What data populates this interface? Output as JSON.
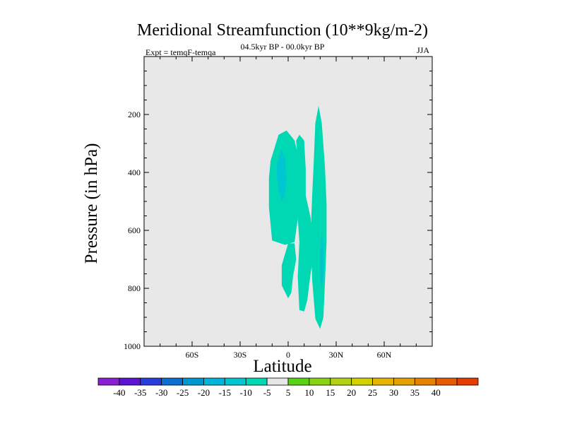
{
  "chart_data": {
    "type": "contour",
    "title": "Meridional Streamfunction (10**9kg/m-2)",
    "subtitle": "04.5kyr BP - 00.0kyr BP",
    "left_annotation": "Expt = temqF-temqa",
    "right_annotation": "JJA",
    "xlabel": "Latitude",
    "ylabel": "Pressure (in hPa)",
    "xlim": [
      -90,
      90
    ],
    "ylim": [
      0,
      1000
    ],
    "y_inverted": true,
    "xticks": [
      {
        "value": -60,
        "label": "60S"
      },
      {
        "value": -30,
        "label": "30S"
      },
      {
        "value": 0,
        "label": "0"
      },
      {
        "value": 30,
        "label": "30N"
      },
      {
        "value": 60,
        "label": "60N"
      }
    ],
    "yticks": [
      {
        "value": 200,
        "label": "200"
      },
      {
        "value": 400,
        "label": "400"
      },
      {
        "value": 600,
        "label": "600"
      },
      {
        "value": 800,
        "label": "800"
      },
      {
        "value": 1000,
        "label": "1000"
      }
    ],
    "background_color": "#e8e8e8",
    "filled_regions": [
      {
        "name": "neg-5-west-cell",
        "level": -5,
        "color": "#00d8b4",
        "points": [
          [
            -11,
            360
          ],
          [
            -6,
            270
          ],
          [
            -1,
            255
          ],
          [
            4,
            290
          ],
          [
            7,
            360
          ],
          [
            8,
            450
          ],
          [
            6,
            560
          ],
          [
            4,
            640
          ],
          [
            -2,
            650
          ],
          [
            -10,
            635
          ],
          [
            -12,
            520
          ],
          [
            -12,
            420
          ]
        ]
      },
      {
        "name": "neg-5-lower-west-lobe",
        "level": -5,
        "color": "#00d8b4",
        "points": [
          [
            -4,
            720
          ],
          [
            0,
            645
          ],
          [
            4,
            645
          ],
          [
            5,
            700
          ],
          [
            3,
            760
          ],
          [
            2,
            815
          ],
          [
            0,
            835
          ],
          [
            -4,
            790
          ]
        ]
      },
      {
        "name": "neg-5-central-cell",
        "level": -5,
        "color": "#00d8b4",
        "points": [
          [
            5,
            290
          ],
          [
            7,
            270
          ],
          [
            10,
            290
          ],
          [
            11,
            390
          ],
          [
            11,
            480
          ],
          [
            14,
            555
          ],
          [
            16,
            680
          ],
          [
            14,
            750
          ],
          [
            12,
            840
          ],
          [
            10,
            880
          ],
          [
            7,
            875
          ],
          [
            6,
            760
          ],
          [
            7,
            640
          ],
          [
            6,
            560
          ],
          [
            7,
            450
          ],
          [
            6,
            360
          ]
        ]
      },
      {
        "name": "neg-5-east-cell",
        "level": -5,
        "color": "#00d8b4",
        "points": [
          [
            17,
            230
          ],
          [
            19,
            170
          ],
          [
            21,
            230
          ],
          [
            23,
            380
          ],
          [
            24,
            510
          ],
          [
            24,
            640
          ],
          [
            23,
            780
          ],
          [
            22,
            900
          ],
          [
            20,
            940
          ],
          [
            17,
            905
          ],
          [
            15,
            770
          ],
          [
            14,
            620
          ],
          [
            15,
            480
          ],
          [
            16,
            360
          ]
        ]
      },
      {
        "name": "neg-10-west-core",
        "level": -10,
        "color": "#00c6d2",
        "points": [
          [
            -7,
            370
          ],
          [
            -4,
            320
          ],
          [
            -2,
            350
          ],
          [
            -1,
            420
          ],
          [
            -2,
            480
          ],
          [
            -4,
            500
          ],
          [
            -6,
            460
          ],
          [
            -7,
            410
          ]
        ]
      },
      {
        "name": "neg-10-east-core",
        "level": -10,
        "color": "#00c6d2",
        "points": [
          [
            21,
            600
          ],
          [
            22,
            660
          ],
          [
            22,
            750
          ],
          [
            21,
            800
          ],
          [
            20,
            770
          ],
          [
            20,
            680
          ]
        ]
      }
    ],
    "colorbar": {
      "boxes": [
        {
          "color": "#8c1ed2"
        },
        {
          "color": "#5a14d2"
        },
        {
          "color": "#283cdc"
        },
        {
          "color": "#0a6ed2"
        },
        {
          "color": "#0096d2"
        },
        {
          "color": "#00b4dc"
        },
        {
          "color": "#00c6d2"
        },
        {
          "color": "#00d8b4"
        },
        {
          "color": "#e6e6e6"
        },
        {
          "color": "#5ad214"
        },
        {
          "color": "#8cd214"
        },
        {
          "color": "#b4d214"
        },
        {
          "color": "#d2d200"
        },
        {
          "color": "#e6b400"
        },
        {
          "color": "#e6a000"
        },
        {
          "color": "#e68200"
        },
        {
          "color": "#e65a00"
        },
        {
          "color": "#e63c00"
        }
      ],
      "labels": [
        "-40",
        "-35",
        "-30",
        "-25",
        "-20",
        "-15",
        "-10",
        "-5",
        "5",
        "10",
        "15",
        "20",
        "25",
        "30",
        "35",
        "40"
      ]
    }
  }
}
